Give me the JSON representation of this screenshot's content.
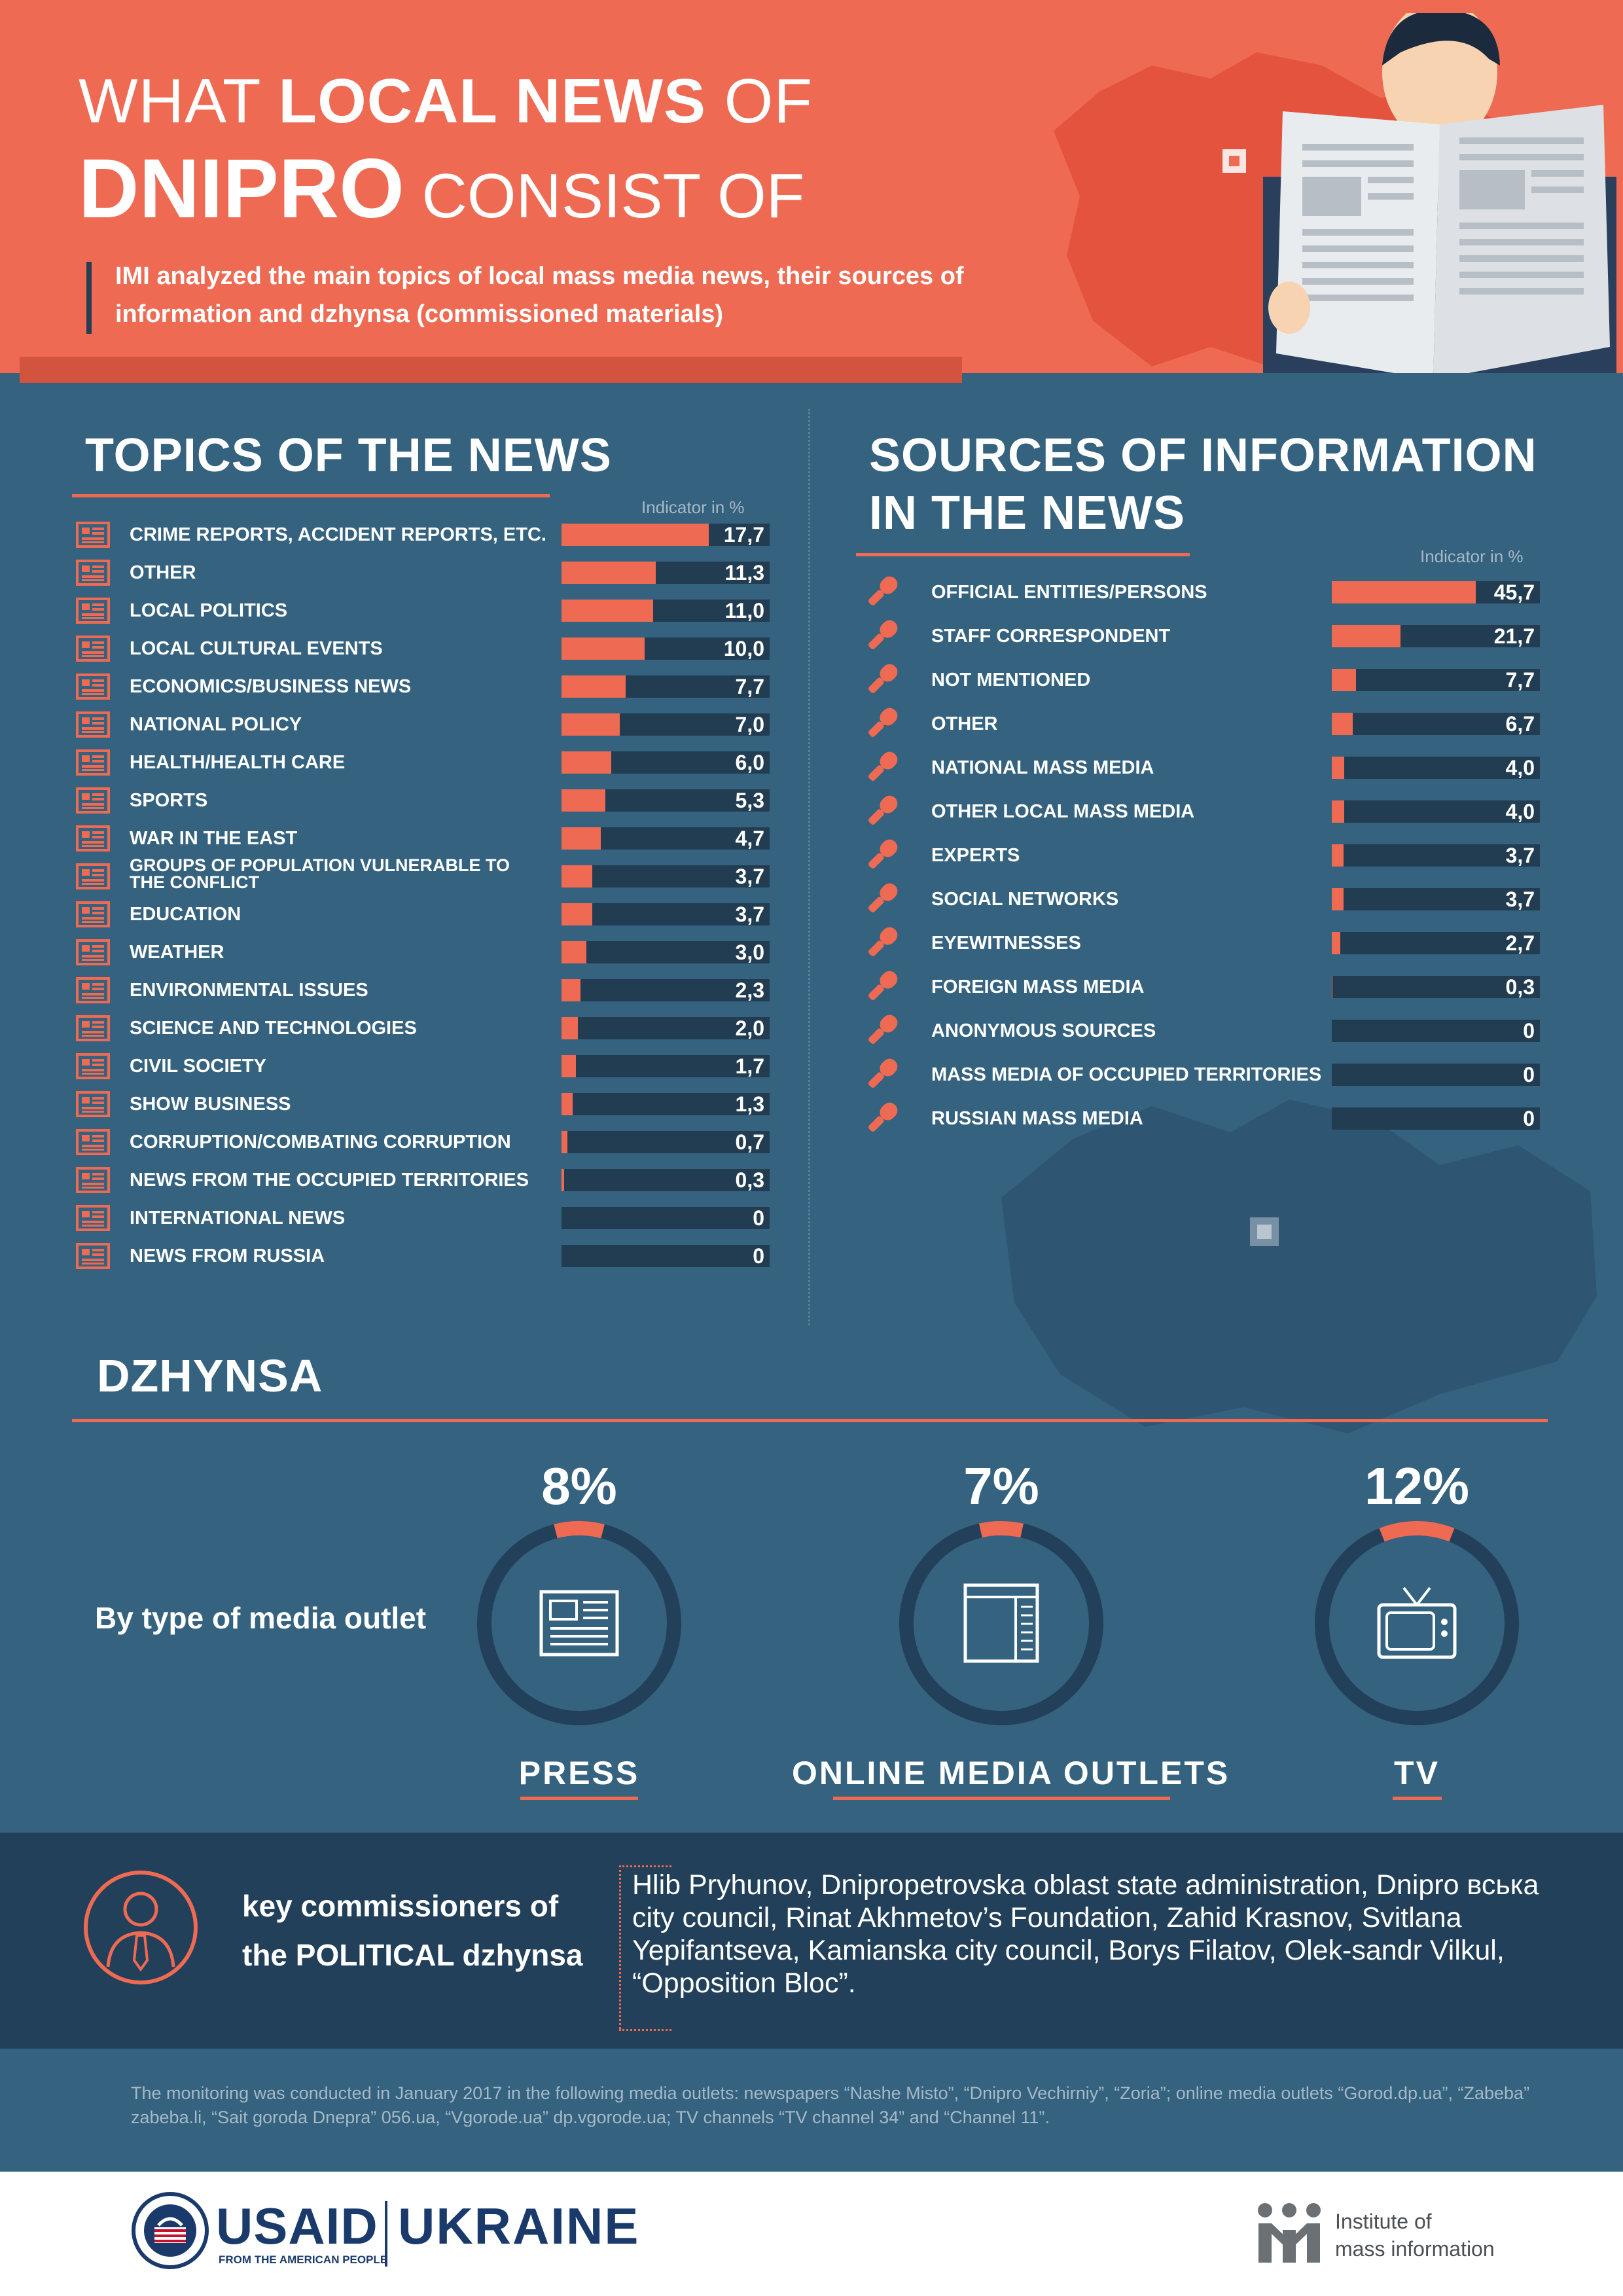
{
  "header": {
    "title_line1_pre": "WHAT ",
    "title_line1_bold": "LOCAL NEWS",
    "title_line1_post": " OF",
    "title_line2_bold": "DNIPRO",
    "title_line2_post": " CONSIST OF",
    "subtitle": "IMI analyzed the main topics of local mass media news, their sources of information and dzhynsa (commissioned materials)"
  },
  "colors": {
    "accent": "#ef6a52",
    "background": "#34627f",
    "bar_track": "#223d52",
    "dark_band": "#22405a"
  },
  "chart_data": [
    {
      "type": "bar",
      "title": "TOPICS OF THE NEWS",
      "indicator_label": "Indicator in %",
      "categories": [
        "Crime reports, accident reports, etc.",
        "Other",
        "Local politics",
        "Local cultural events",
        "Economics/business news",
        "National policy",
        "Health/health care",
        "Sports",
        "War in the East",
        "Groups of population vulnerable to the conflict",
        "Education",
        "Weather",
        "Environmental issues",
        "Science and technologies",
        "Civil society",
        "Show business",
        "Corruption/combating corruption",
        "News from the occupied territories",
        "International news",
        "News from Russia"
      ],
      "values": [
        17.7,
        11.3,
        11.0,
        10.0,
        7.7,
        7.0,
        6.0,
        5.3,
        4.7,
        3.7,
        3.7,
        3.0,
        2.3,
        2.0,
        1.7,
        1.3,
        0.7,
        0.3,
        0,
        0
      ],
      "value_labels": [
        "17,7",
        "11,3",
        "11,0",
        "10,0",
        "7,7",
        "7,0",
        "6,0",
        "5,3",
        "4,7",
        "3,7",
        "3,7",
        "3,0",
        "2,3",
        "2,0",
        "1,7",
        "1,3",
        "0,7",
        "0,3",
        "0",
        "0"
      ],
      "xlim": [
        0,
        25
      ]
    },
    {
      "type": "bar",
      "title": "SOURCES OF INFORMATION IN THE NEWS",
      "indicator_label": "Indicator in %",
      "categories": [
        "Official entities/persons",
        "Staff correspondent",
        "Not mentioned",
        "Other",
        "National mass media",
        "Other local mass media",
        "Experts",
        "Social networks",
        "Eyewitnesses",
        "Foreign mass media",
        "Anonymous sources",
        "Mass media of occupied territories",
        "Russian mass media"
      ],
      "values": [
        45.7,
        21.7,
        7.7,
        6.7,
        4.0,
        4.0,
        3.7,
        3.7,
        2.7,
        0.3,
        0,
        0,
        0
      ],
      "value_labels": [
        "45,7",
        "21,7",
        "7,7",
        "6,7",
        "4,0",
        "4,0",
        "3,7",
        "3,7",
        "2,7",
        "0,3",
        "0",
        "0",
        "0"
      ],
      "xlim": [
        0,
        66
      ]
    }
  ],
  "sources_title_line1": "SOURCES OF INFORMATION",
  "sources_title_line2": "IN THE NEWS",
  "dzhynsa": {
    "title": "DZHYNSA",
    "by_type_label": "By type of media outlet",
    "outlets": [
      {
        "label": "PRESS",
        "percent_text": "8%",
        "percent": 8,
        "icon": "newspaper-icon"
      },
      {
        "label": "ONLINE MEDIA OUTLETS",
        "percent_text": "7%",
        "percent": 7,
        "icon": "browser-window-icon"
      },
      {
        "label": "TV",
        "percent_text": "12%",
        "percent": 12,
        "icon": "tv-icon"
      }
    ]
  },
  "commissioners": {
    "label_line1": "key commissioners of",
    "label_line2": "the POLITICAL dzhynsa",
    "text": "Hlib Pryhunov, Dnipropetrovska oblast state administration, Dnipro вська city council, Rinat Akhmetov’s Foundation, Zahid Krasnov, Svitlana Yepifantseva, Kamianska city council, Borys Filatov, Olek-sandr Vilkul, “Opposition Bloc”."
  },
  "footer": {
    "note": "The monitoring was conducted in January 2017 in the following media outlets: newspapers “Nashe Misto”, “Dnipro Vechirniy”, “Zoria”; online media outlets “Gorod.dp.ua”, “Zabeba” zabeba.li, “Sait goroda Dnepra” 056.ua, “Vgorode.ua” dp.vgorode.ua; TV channels “TV channel 34” and “Channel 11”.",
    "usaid": "USAID",
    "usaid_tagline": "FROM THE AMERICAN PEOPLE",
    "ukraine": "UKRAINE",
    "imi_line1": "Institute of",
    "imi_line2": "mass information"
  }
}
